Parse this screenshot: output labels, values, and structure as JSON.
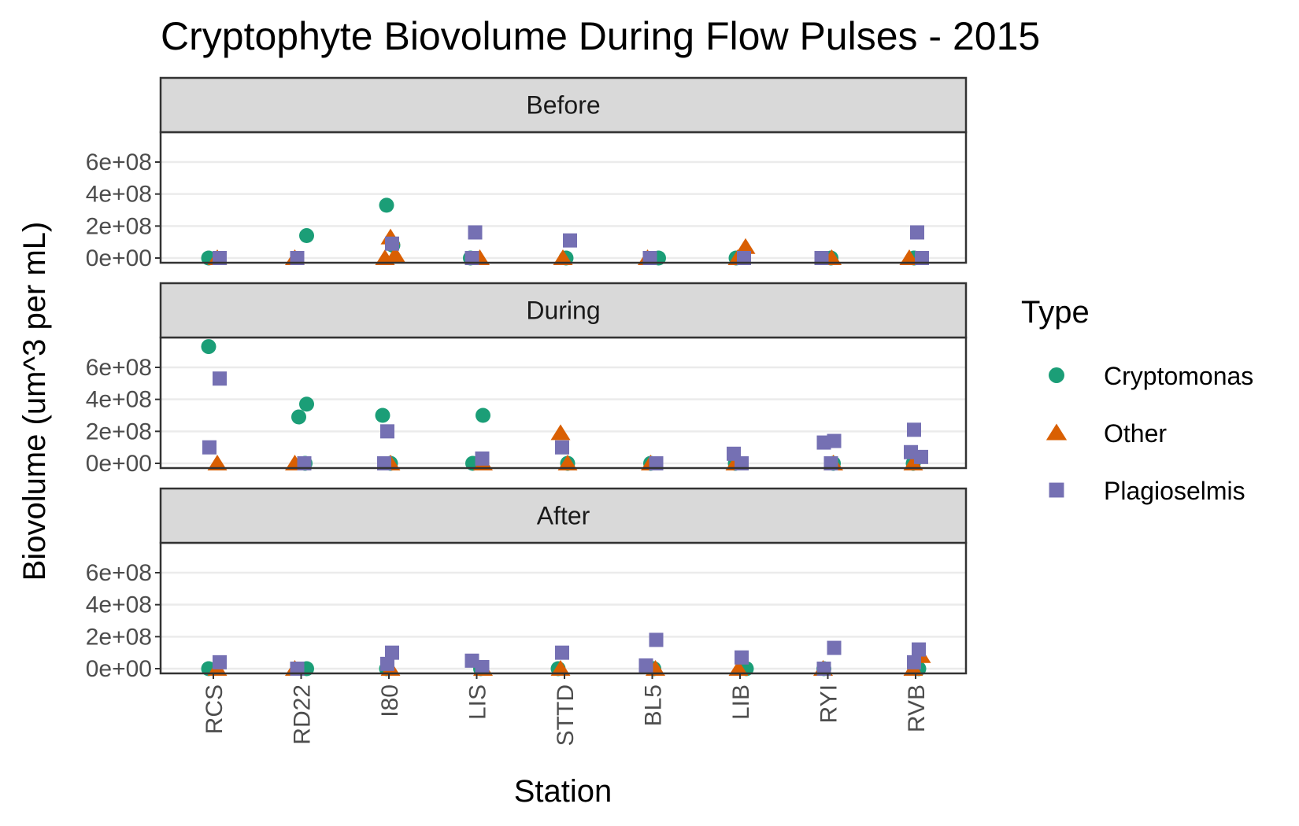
{
  "chart_data": {
    "type": "scatter",
    "title": "Cryptophyte Biovolume During Flow Pulses - 2015",
    "xlabel": "Station",
    "ylabel": "Biovolume (um^3 per mL)",
    "categories": [
      "RCS",
      "RD22",
      "I80",
      "LIS",
      "STTD",
      "BL5",
      "LIB",
      "RYI",
      "RVB"
    ],
    "y_ticks": [
      0,
      200000000,
      400000000,
      600000000
    ],
    "y_tick_labels": [
      "0e+00",
      "2e+08",
      "4e+08",
      "6e+08"
    ],
    "ylim": [
      -20000000,
      750000000
    ],
    "grid": true,
    "legend": {
      "title": "Type",
      "position": "right",
      "entries": [
        {
          "name": "Cryptomonas",
          "color": "#1b9e77",
          "shape": "circle"
        },
        {
          "name": "Other",
          "color": "#d95f02",
          "shape": "triangle"
        },
        {
          "name": "Plagioselmis",
          "color": "#7570b3",
          "shape": "square"
        }
      ]
    },
    "panels": [
      {
        "label": "Before",
        "series": [
          {
            "name": "Cryptomonas",
            "points": [
              [
                "RCS",
                0
              ],
              [
                "RD22",
                140000000
              ],
              [
                "I80",
                330000000
              ],
              [
                "I80",
                80000000
              ],
              [
                "LIS",
                0
              ],
              [
                "STTD",
                0
              ],
              [
                "BL5",
                0
              ],
              [
                "LIB",
                0
              ],
              [
                "RYI",
                0
              ],
              [
                "RVB",
                0
              ]
            ]
          },
          {
            "name": "Other",
            "points": [
              [
                "RCS",
                0
              ],
              [
                "RD22",
                0
              ],
              [
                "I80",
                130000000
              ],
              [
                "I80",
                20000000
              ],
              [
                "I80",
                0
              ],
              [
                "LIS",
                0
              ],
              [
                "STTD",
                0
              ],
              [
                "BL5",
                0
              ],
              [
                "LIB",
                70000000
              ],
              [
                "LIB",
                0
              ],
              [
                "RYI",
                0
              ],
              [
                "RVB",
                0
              ]
            ]
          },
          {
            "name": "Plagioselmis",
            "points": [
              [
                "RCS",
                0
              ],
              [
                "RD22",
                0
              ],
              [
                "I80",
                90000000
              ],
              [
                "LIS",
                160000000
              ],
              [
                "LIS",
                0
              ],
              [
                "STTD",
                110000000
              ],
              [
                "BL5",
                0
              ],
              [
                "LIB",
                0
              ],
              [
                "RYI",
                0
              ],
              [
                "RVB",
                160000000
              ],
              [
                "RVB",
                0
              ]
            ]
          }
        ]
      },
      {
        "label": "During",
        "series": [
          {
            "name": "Cryptomonas",
            "points": [
              [
                "RCS",
                730000000
              ],
              [
                "RD22",
                370000000
              ],
              [
                "RD22",
                290000000
              ],
              [
                "RD22",
                0
              ],
              [
                "I80",
                300000000
              ],
              [
                "I80",
                0
              ],
              [
                "LIS",
                300000000
              ],
              [
                "LIS",
                0
              ],
              [
                "STTD",
                0
              ],
              [
                "BL5",
                0
              ],
              [
                "LIB",
                0
              ],
              [
                "RYI",
                0
              ],
              [
                "RVB",
                0
              ]
            ]
          },
          {
            "name": "Other",
            "points": [
              [
                "RCS",
                0
              ],
              [
                "RD22",
                0
              ],
              [
                "I80",
                0
              ],
              [
                "LIS",
                0
              ],
              [
                "STTD",
                190000000
              ],
              [
                "STTD",
                0
              ],
              [
                "BL5",
                0
              ],
              [
                "LIB",
                0
              ],
              [
                "RYI",
                0
              ],
              [
                "RVB",
                0
              ]
            ]
          },
          {
            "name": "Plagioselmis",
            "points": [
              [
                "RCS",
                530000000
              ],
              [
                "RCS",
                100000000
              ],
              [
                "RD22",
                0
              ],
              [
                "I80",
                200000000
              ],
              [
                "I80",
                0
              ],
              [
                "LIS",
                30000000
              ],
              [
                "STTD",
                100000000
              ],
              [
                "BL5",
                0
              ],
              [
                "LIB",
                60000000
              ],
              [
                "LIB",
                0
              ],
              [
                "RYI",
                140000000
              ],
              [
                "RYI",
                130000000
              ],
              [
                "RYI",
                0
              ],
              [
                "RVB",
                210000000
              ],
              [
                "RVB",
                70000000
              ],
              [
                "RVB",
                40000000
              ]
            ]
          }
        ]
      },
      {
        "label": "After",
        "series": [
          {
            "name": "Cryptomonas",
            "points": [
              [
                "RCS",
                0
              ],
              [
                "RD22",
                0
              ],
              [
                "I80",
                0
              ],
              [
                "LIS",
                0
              ],
              [
                "STTD",
                0
              ],
              [
                "BL5",
                0
              ],
              [
                "LIB",
                0
              ],
              [
                "RYI",
                0
              ],
              [
                "RVB",
                0
              ]
            ]
          },
          {
            "name": "Other",
            "points": [
              [
                "RCS",
                0
              ],
              [
                "RD22",
                0
              ],
              [
                "I80",
                0
              ],
              [
                "LIS",
                0
              ],
              [
                "STTD",
                0
              ],
              [
                "BL5",
                0
              ],
              [
                "LIB",
                0
              ],
              [
                "RYI",
                0
              ],
              [
                "RVB",
                80000000
              ],
              [
                "RVB",
                0
              ]
            ]
          },
          {
            "name": "Plagioselmis",
            "points": [
              [
                "RCS",
                40000000
              ],
              [
                "RD22",
                0
              ],
              [
                "I80",
                100000000
              ],
              [
                "I80",
                30000000
              ],
              [
                "LIS",
                50000000
              ],
              [
                "LIS",
                10000000
              ],
              [
                "STTD",
                100000000
              ],
              [
                "BL5",
                180000000
              ],
              [
                "BL5",
                20000000
              ],
              [
                "LIB",
                70000000
              ],
              [
                "RYI",
                130000000
              ],
              [
                "RYI",
                0
              ],
              [
                "RVB",
                120000000
              ],
              [
                "RVB",
                40000000
              ]
            ]
          }
        ]
      }
    ]
  }
}
